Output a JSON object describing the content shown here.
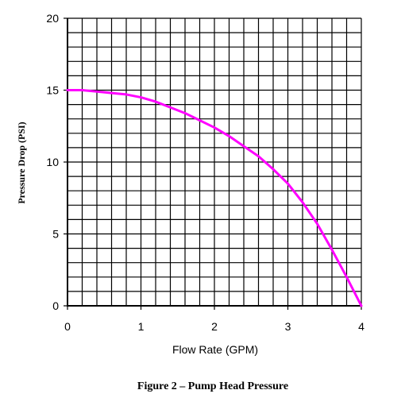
{
  "chart_data": {
    "type": "line",
    "title": "",
    "caption": "Figure 2 – Pump Head Pressure",
    "xlabel": "Flow Rate (GPM)",
    "ylabel": "Pressure Drop (PSI)",
    "xlim": [
      0,
      4
    ],
    "ylim": [
      0,
      20
    ],
    "x_ticks": [
      0,
      1,
      2,
      3,
      4
    ],
    "y_ticks": [
      0,
      5,
      10,
      15,
      20
    ],
    "x_minor_step": 0.2,
    "y_minor_step": 1,
    "grid": true,
    "series": [
      {
        "color": "#ff00ff",
        "x": [
          0,
          0.2,
          0.4,
          0.6,
          0.8,
          1.0,
          1.2,
          1.4,
          1.6,
          1.8,
          2.0,
          2.2,
          2.4,
          2.6,
          2.8,
          3.0,
          3.2,
          3.4,
          3.6,
          3.8,
          4.0
        ],
        "y": [
          15.0,
          15.0,
          14.9,
          14.8,
          14.7,
          14.5,
          14.2,
          13.8,
          13.4,
          12.9,
          12.4,
          11.8,
          11.1,
          10.4,
          9.5,
          8.5,
          7.2,
          5.7,
          3.9,
          2.0,
          0.0
        ]
      }
    ]
  }
}
